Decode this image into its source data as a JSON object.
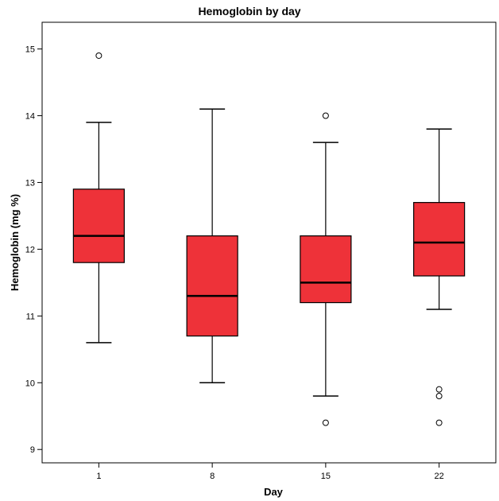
{
  "chart_data": {
    "type": "box",
    "title": "Hemoglobin by day",
    "xlabel": "Day",
    "ylabel": "Hemoglobin (mg %)",
    "ylim": [
      8.8,
      15.4
    ],
    "yticks": [
      9,
      10,
      11,
      12,
      13,
      14,
      15
    ],
    "grid": false,
    "box_color": "#ee3239",
    "categories": [
      "1",
      "8",
      "15",
      "22"
    ],
    "boxes": [
      {
        "label": "1",
        "whisker_low": 10.6,
        "q1": 11.8,
        "median": 12.2,
        "q3": 12.9,
        "whisker_high": 13.9,
        "outliers": [
          14.9
        ]
      },
      {
        "label": "8",
        "whisker_low": 10.0,
        "q1": 10.7,
        "median": 11.3,
        "q3": 12.2,
        "whisker_high": 14.1,
        "outliers": []
      },
      {
        "label": "15",
        "whisker_low": 9.8,
        "q1": 11.2,
        "median": 11.5,
        "q3": 12.2,
        "whisker_high": 13.6,
        "outliers": [
          14.0,
          9.4
        ]
      },
      {
        "label": "22",
        "whisker_low": 11.1,
        "q1": 11.6,
        "median": 12.1,
        "q3": 12.7,
        "whisker_high": 13.8,
        "outliers": [
          9.9,
          9.8,
          9.4
        ]
      }
    ]
  }
}
